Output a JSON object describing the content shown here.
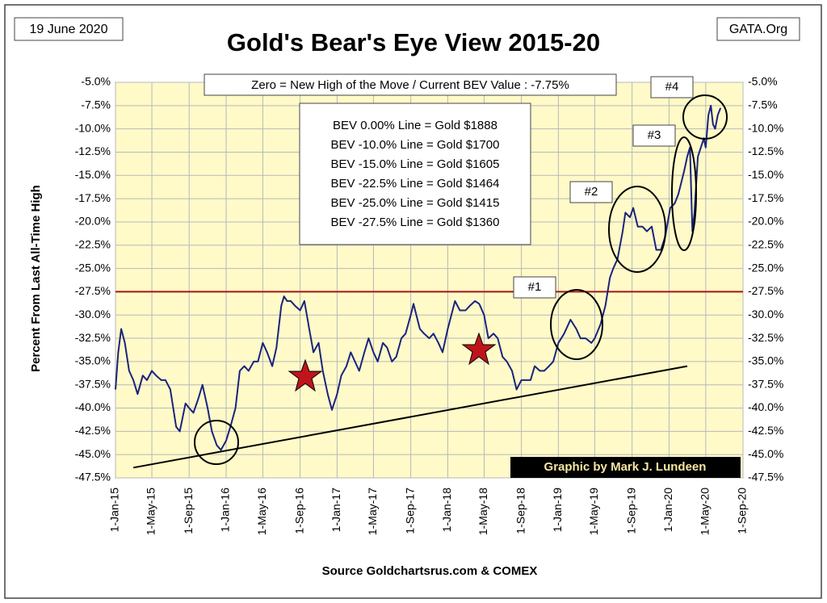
{
  "chart_data": {
    "type": "line",
    "title": "Gold's Bear's Eye View 2015-20",
    "date_label": "19 June 2020",
    "source_tag": "GATA.Org",
    "ylabel": "Percent  From  Last  All-Time High",
    "xlabel": "Source Goldchartsrus.com & COMEX",
    "credit": "Graphic by Mark J. Lundeen",
    "header_note": "Zero = New High of the Move / Current  BEV Value : -7.75%",
    "bev_lines": [
      "BEV 0.00% Line = Gold $1888",
      "BEV -10.0% Line = Gold $1700",
      "BEV -15.0% Line = Gold $1605",
      "BEV -22.5% Line = Gold $1464",
      "BEV -25.0% Line = Gold $1415",
      "BEV -27.5% Line = Gold $1360"
    ],
    "markers": [
      "#1",
      "#2",
      "#3",
      "#4"
    ],
    "color": "#1a237e",
    "grid": true,
    "reference_line": {
      "value": -27.5,
      "color": "#a31515"
    },
    "trend_line": {
      "x": [
        "2015-03-01",
        "2020-03-01"
      ],
      "values": [
        -46.4,
        -35.5
      ],
      "color": "#000000"
    },
    "xlim": [
      "2015-01-01",
      "2020-09-01"
    ],
    "xticks": [
      {
        "value": "2015-01-01",
        "label": "1-Jan-15"
      },
      {
        "value": "2015-05-01",
        "label": "1-May-15"
      },
      {
        "value": "2015-09-01",
        "label": "1-Sep-15"
      },
      {
        "value": "2016-01-01",
        "label": "1-Jan-16"
      },
      {
        "value": "2016-05-01",
        "label": "1-May-16"
      },
      {
        "value": "2016-09-01",
        "label": "1-Sep-16"
      },
      {
        "value": "2017-01-01",
        "label": "1-Jan-17"
      },
      {
        "value": "2017-05-01",
        "label": "1-May-17"
      },
      {
        "value": "2017-09-01",
        "label": "1-Sep-17"
      },
      {
        "value": "2018-01-01",
        "label": "1-Jan-18"
      },
      {
        "value": "2018-05-01",
        "label": "1-May-18"
      },
      {
        "value": "2018-09-01",
        "label": "1-Sep-18"
      },
      {
        "value": "2019-01-01",
        "label": "1-Jan-19"
      },
      {
        "value": "2019-05-01",
        "label": "1-May-19"
      },
      {
        "value": "2019-09-01",
        "label": "1-Sep-19"
      },
      {
        "value": "2020-01-01",
        "label": "1-Jan-20"
      },
      {
        "value": "2020-05-01",
        "label": "1-May-20"
      },
      {
        "value": "2020-09-01",
        "label": "1-Sep-20"
      }
    ],
    "ylim": [
      -47.5,
      -5
    ],
    "yticks": [
      {
        "value": -5,
        "label": "-5.0%"
      },
      {
        "value": -7.5,
        "label": "-7.5%"
      },
      {
        "value": -10,
        "label": "-10.0%"
      },
      {
        "value": -12.5,
        "label": "-12.5%"
      },
      {
        "value": -15,
        "label": "-15.0%"
      },
      {
        "value": -17.5,
        "label": "-17.5%"
      },
      {
        "value": -20,
        "label": "-20.0%"
      },
      {
        "value": -22.5,
        "label": "-22.5%"
      },
      {
        "value": -25,
        "label": "-25.0%"
      },
      {
        "value": -27.5,
        "label": "-27.5%"
      },
      {
        "value": -30,
        "label": "-30.0%"
      },
      {
        "value": -32.5,
        "label": "-32.5%"
      },
      {
        "value": -35,
        "label": "-35.0%"
      },
      {
        "value": -37.5,
        "label": "-37.5%"
      },
      {
        "value": -40,
        "label": "-40.0%"
      },
      {
        "value": -42.5,
        "label": "-42.5%"
      },
      {
        "value": -45,
        "label": "-45.0%"
      },
      {
        "value": -47.5,
        "label": "-47.5%"
      }
    ],
    "x": [
      "2015-01-01",
      "2015-01-10",
      "2015-01-20",
      "2015-02-01",
      "2015-02-15",
      "2015-03-01",
      "2015-03-15",
      "2015-04-01",
      "2015-04-15",
      "2015-05-01",
      "2015-05-15",
      "2015-06-01",
      "2015-06-15",
      "2015-07-01",
      "2015-07-20",
      "2015-08-01",
      "2015-08-20",
      "2015-09-01",
      "2015-09-15",
      "2015-10-01",
      "2015-10-15",
      "2015-11-01",
      "2015-11-15",
      "2015-12-01",
      "2015-12-15",
      "2016-01-01",
      "2016-01-15",
      "2016-02-01",
      "2016-02-15",
      "2016-03-01",
      "2016-03-15",
      "2016-04-01",
      "2016-04-15",
      "2016-05-01",
      "2016-05-15",
      "2016-06-01",
      "2016-06-15",
      "2016-07-01",
      "2016-07-10",
      "2016-07-20",
      "2016-08-01",
      "2016-08-15",
      "2016-09-01",
      "2016-09-15",
      "2016-10-01",
      "2016-10-15",
      "2016-11-01",
      "2016-11-15",
      "2016-12-01",
      "2016-12-15",
      "2017-01-01",
      "2017-01-15",
      "2017-02-01",
      "2017-02-15",
      "2017-03-01",
      "2017-03-15",
      "2017-04-01",
      "2017-04-15",
      "2017-05-01",
      "2017-05-15",
      "2017-06-01",
      "2017-06-15",
      "2017-07-01",
      "2017-07-15",
      "2017-08-01",
      "2017-08-15",
      "2017-09-01",
      "2017-09-10",
      "2017-10-01",
      "2017-10-15",
      "2017-11-01",
      "2017-11-15",
      "2017-12-01",
      "2017-12-15",
      "2018-01-01",
      "2018-01-25",
      "2018-02-10",
      "2018-03-01",
      "2018-03-15",
      "2018-04-01",
      "2018-04-15",
      "2018-05-01",
      "2018-05-15",
      "2018-06-01",
      "2018-06-15",
      "2018-07-01",
      "2018-07-15",
      "2018-08-01",
      "2018-08-16",
      "2018-09-01",
      "2018-09-15",
      "2018-10-01",
      "2018-10-15",
      "2018-11-01",
      "2018-11-15",
      "2018-12-01",
      "2018-12-15",
      "2019-01-01",
      "2019-01-20",
      "2019-02-10",
      "2019-03-01",
      "2019-03-15",
      "2019-04-01",
      "2019-04-20",
      "2019-05-01",
      "2019-05-20",
      "2019-06-05",
      "2019-06-20",
      "2019-07-01",
      "2019-07-15",
      "2019-08-01",
      "2019-08-10",
      "2019-08-25",
      "2019-09-05",
      "2019-09-20",
      "2019-10-05",
      "2019-10-20",
      "2019-11-05",
      "2019-11-20",
      "2019-12-05",
      "2019-12-20",
      "2020-01-05",
      "2020-01-20",
      "2020-02-01",
      "2020-02-20",
      "2020-03-01",
      "2020-03-10",
      "2020-03-18",
      "2020-03-25",
      "2020-04-05",
      "2020-04-15",
      "2020-04-25",
      "2020-05-01",
      "2020-05-10",
      "2020-05-18",
      "2020-05-25",
      "2020-06-01",
      "2020-06-10",
      "2020-06-19"
    ],
    "values": [
      -38,
      -34,
      -31.5,
      -33,
      -36,
      -37,
      -38.5,
      -36.5,
      -37,
      -36,
      -36.5,
      -37,
      -37,
      -38,
      -42,
      -42.5,
      -39.5,
      -40,
      -40.5,
      -39,
      -37.5,
      -40,
      -42.5,
      -44,
      -44.5,
      -43.5,
      -42,
      -40,
      -36,
      -35.5,
      -36,
      -35,
      -35,
      -33,
      -34,
      -35.5,
      -33.5,
      -29,
      -28,
      -28.5,
      -28.5,
      -29,
      -29.5,
      -28.5,
      -31.5,
      -34,
      -33,
      -36,
      -38.5,
      -40.2,
      -38.5,
      -36.5,
      -35.5,
      -34,
      -35,
      -36,
      -34,
      -32.5,
      -34,
      -35,
      -33,
      -33.5,
      -35,
      -34.5,
      -32.5,
      -32,
      -30,
      -28.8,
      -31.5,
      -32,
      -32.5,
      -32,
      -33,
      -34,
      -31.5,
      -28.5,
      -29.5,
      -29.5,
      -29,
      -28.5,
      -28.8,
      -30,
      -32.5,
      -32,
      -32.5,
      -34.5,
      -35,
      -36,
      -38,
      -37,
      -37,
      -37,
      -35.5,
      -36,
      -36,
      -35.5,
      -35,
      -33,
      -32,
      -30.5,
      -31.5,
      -32.5,
      -32.5,
      -33,
      -32.5,
      -31,
      -29,
      -26,
      -25,
      -24,
      -21,
      -19,
      -19.5,
      -18.5,
      -20.5,
      -20.5,
      -21,
      -20.5,
      -23,
      -23,
      -21.5,
      -18.5,
      -18,
      -17,
      -14.5,
      -13,
      -12,
      -21,
      -19,
      -13,
      -12,
      -11,
      -12,
      -8.5,
      -7.5,
      -9.5,
      -10,
      -8.5,
      -7.75
    ]
  }
}
